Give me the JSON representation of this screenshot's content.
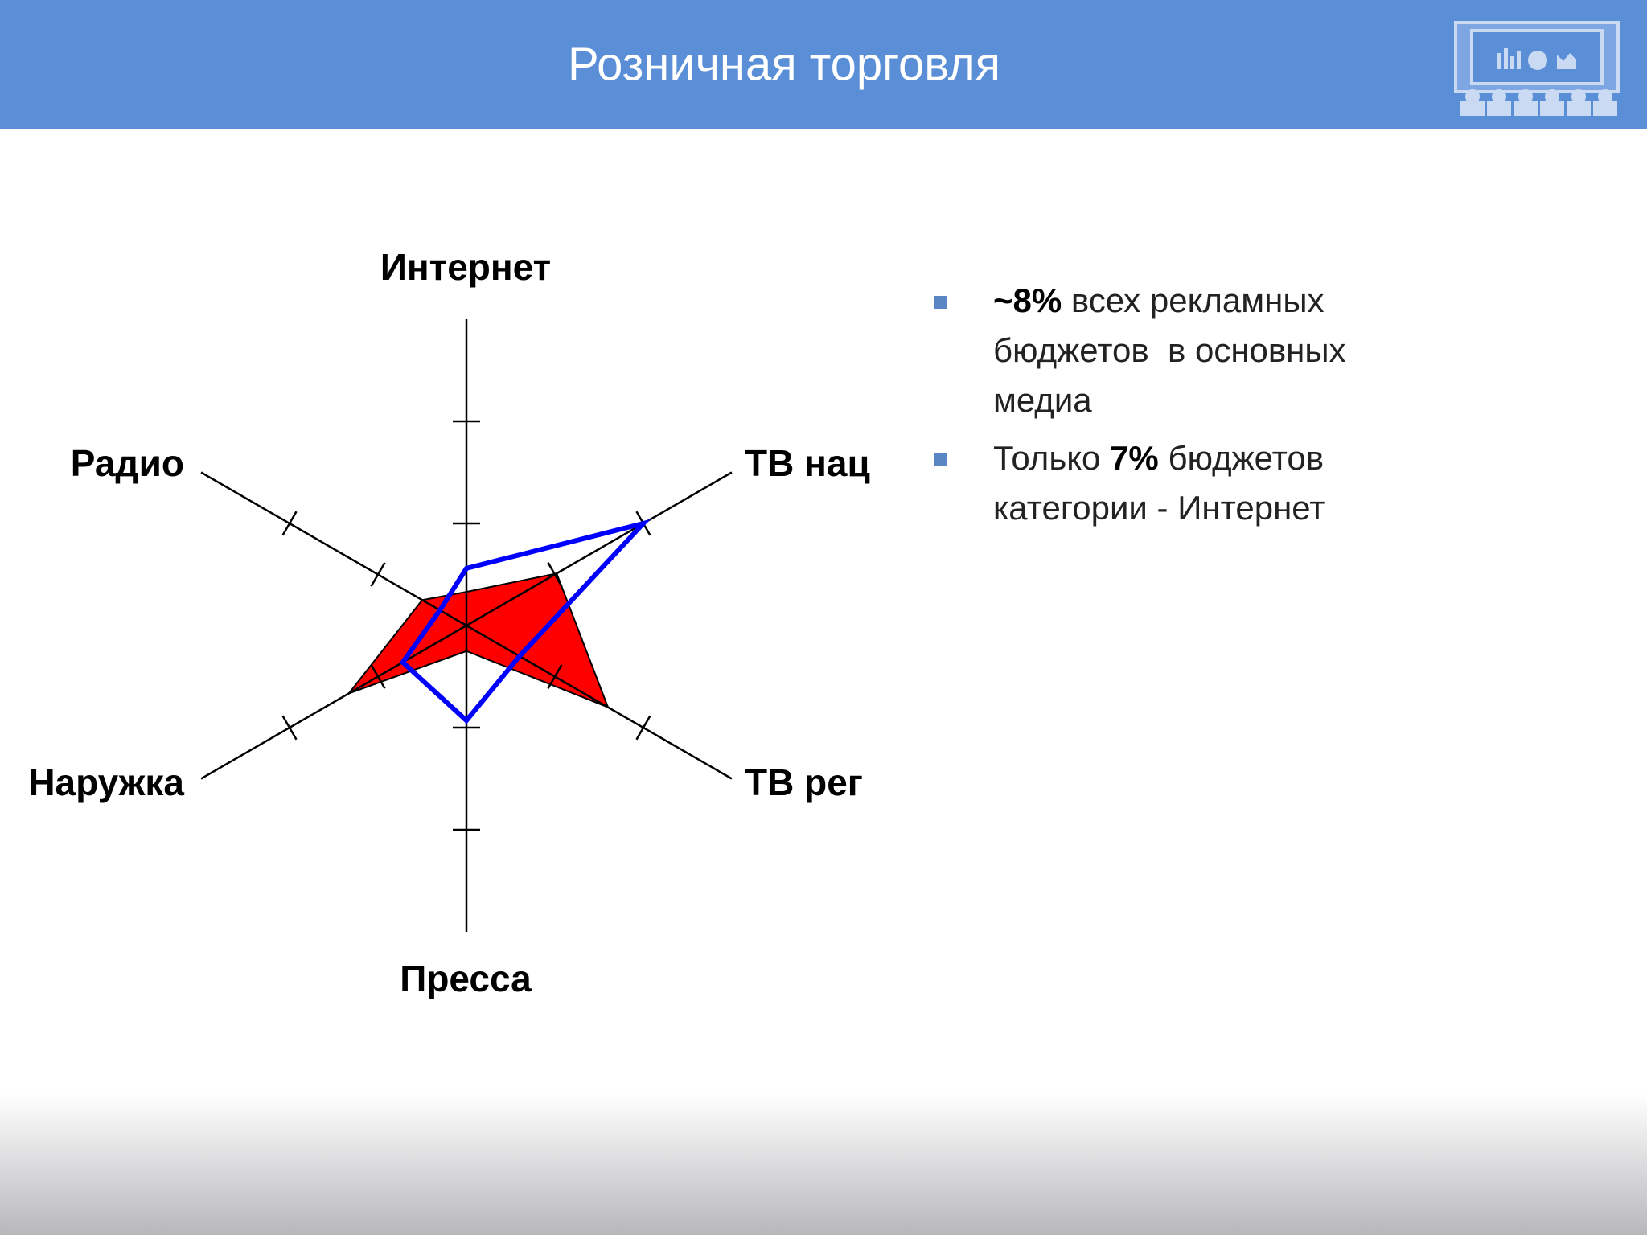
{
  "header": {
    "title": "Розничная торговля"
  },
  "chart_data": {
    "type": "radar",
    "categories": [
      "Интернет",
      "ТВ нац",
      "ТВ рег",
      "Пресса",
      "Наружка",
      "Радио"
    ],
    "rlim": [
      0,
      3
    ],
    "rticks": [
      1,
      2
    ],
    "series": [
      {
        "color": "#ff0000",
        "values": [
          0.33,
          1.02,
          1.6,
          0.25,
          1.33,
          0.5
        ]
      },
      {
        "color": "#0000ff",
        "values": [
          0.56,
          2.0,
          0.6,
          0.93,
          0.72,
          0.3
        ]
      }
    ]
  },
  "bullets": [
    {
      "lines": [
        [
          {
            "text": "~8%",
            "bold": true
          },
          {
            "text": " всех рекламных"
          }
        ],
        [
          {
            "text": "бюджетов  в основных"
          }
        ],
        [
          {
            "text": "медиа"
          }
        ]
      ]
    },
    {
      "lines": [
        [
          {
            "text": "Только "
          },
          {
            "text": "7%",
            "bold": true
          },
          {
            "text": " бюджетов"
          }
        ],
        [
          {
            "text": "категории - Интернет"
          }
        ]
      ]
    }
  ]
}
